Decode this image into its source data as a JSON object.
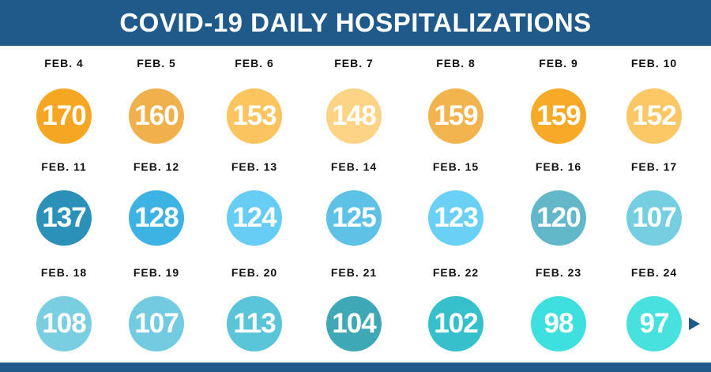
{
  "title": "COVID-19 DAILY HOSPITALIZATIONS",
  "rows": [
    {
      "days": [
        {
          "date": "FEB. 4",
          "value": "170",
          "color": "#f5a623"
        },
        {
          "date": "FEB. 5",
          "value": "160",
          "color": "#f0b04c"
        },
        {
          "date": "FEB. 6",
          "value": "153",
          "color": "#fbc45f"
        },
        {
          "date": "FEB. 7",
          "value": "148",
          "color": "#fdd385"
        },
        {
          "date": "FEB. 8",
          "value": "159",
          "color": "#f2b44e"
        },
        {
          "date": "FEB. 9",
          "value": "159",
          "color": "#f7aa28"
        },
        {
          "date": "FEB. 10",
          "value": "152",
          "color": "#fbc865"
        }
      ]
    },
    {
      "days": [
        {
          "date": "FEB. 11",
          "value": "137",
          "color": "#2b91b8"
        },
        {
          "date": "FEB. 12",
          "value": "128",
          "color": "#3cb3e3"
        },
        {
          "date": "FEB. 13",
          "value": "124",
          "color": "#67cdf4"
        },
        {
          "date": "FEB. 14",
          "value": "125",
          "color": "#5ec2e6"
        },
        {
          "date": "FEB. 15",
          "value": "123",
          "color": "#6ad0f6"
        },
        {
          "date": "FEB. 16",
          "value": "120",
          "color": "#62b8c9"
        },
        {
          "date": "FEB. 17",
          "value": "107",
          "color": "#76cfe0"
        }
      ]
    },
    {
      "days": [
        {
          "date": "FEB. 18",
          "value": "108",
          "color": "#79cfe0"
        },
        {
          "date": "FEB. 19",
          "value": "107",
          "color": "#72cbe0"
        },
        {
          "date": "FEB. 20",
          "value": "113",
          "color": "#5ac4d8"
        },
        {
          "date": "FEB. 21",
          "value": "104",
          "color": "#3ea8b6"
        },
        {
          "date": "FEB. 22",
          "value": "102",
          "color": "#35c0cc"
        },
        {
          "date": "FEB. 23",
          "value": "98",
          "color": "#3ee0df"
        },
        {
          "date": "FEB. 24",
          "value": "97",
          "color": "#48e2de"
        }
      ]
    }
  ],
  "colors": {
    "header": "#1f5a8b",
    "line": "#1f5a8b"
  }
}
